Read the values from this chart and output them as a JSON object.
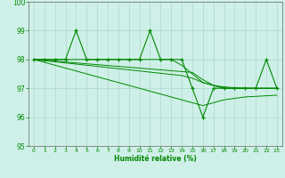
{
  "x": [
    0,
    1,
    2,
    3,
    4,
    5,
    6,
    7,
    8,
    9,
    10,
    11,
    12,
    13,
    14,
    15,
    16,
    17,
    18,
    19,
    20,
    21,
    22,
    23
  ],
  "y_main": [
    98,
    98,
    98,
    98,
    99,
    98,
    98,
    98,
    98,
    98,
    98,
    99,
    98,
    98,
    98,
    97,
    96,
    97,
    97,
    97,
    97,
    97,
    98,
    97
  ],
  "y_upper": [
    98,
    98,
    98,
    98,
    98,
    98,
    98,
    98,
    98,
    98,
    98,
    98,
    98,
    98,
    97.8,
    97.5,
    97.2,
    97.1,
    97.0,
    97.0,
    97.0,
    97.0,
    97.0,
    97.0
  ],
  "y_lower": [
    98,
    97.97,
    97.94,
    97.91,
    97.88,
    97.85,
    97.82,
    97.79,
    97.76,
    97.73,
    97.7,
    97.67,
    97.64,
    97.61,
    97.58,
    97.55,
    97.3,
    97.1,
    97.0,
    97.0,
    97.0,
    97.0,
    97.0,
    97.0
  ],
  "y_trend1": [
    98,
    97.96,
    97.92,
    97.88,
    97.84,
    97.8,
    97.76,
    97.72,
    97.68,
    97.64,
    97.6,
    97.56,
    97.52,
    97.48,
    97.44,
    97.35,
    97.2,
    97.1,
    97.05,
    97.02,
    97.0,
    97.0,
    97.0,
    97.0
  ],
  "y_trend2": [
    98,
    97.9,
    97.8,
    97.7,
    97.6,
    97.5,
    97.4,
    97.3,
    97.2,
    97.1,
    97.0,
    96.9,
    96.8,
    96.7,
    96.6,
    96.5,
    96.4,
    96.5,
    96.6,
    96.65,
    96.7,
    96.72,
    96.74,
    96.76
  ],
  "xlim": [
    -0.5,
    23.5
  ],
  "ylim": [
    95,
    100
  ],
  "yticks": [
    95,
    96,
    97,
    98,
    99,
    100
  ],
  "xticks": [
    0,
    1,
    2,
    3,
    4,
    5,
    6,
    7,
    8,
    9,
    10,
    11,
    12,
    13,
    14,
    15,
    16,
    17,
    18,
    19,
    20,
    21,
    22,
    23
  ],
  "xlabel": "Humidité relative (%)",
  "bg_color": "#cff0e8",
  "grid_color": "#aad8cc",
  "line_color": "#008800",
  "axis_color": "#666666",
  "text_color": "#008800",
  "tick_color": "#008800",
  "figwidth": 3.2,
  "figheight": 2.0,
  "dpi": 100
}
